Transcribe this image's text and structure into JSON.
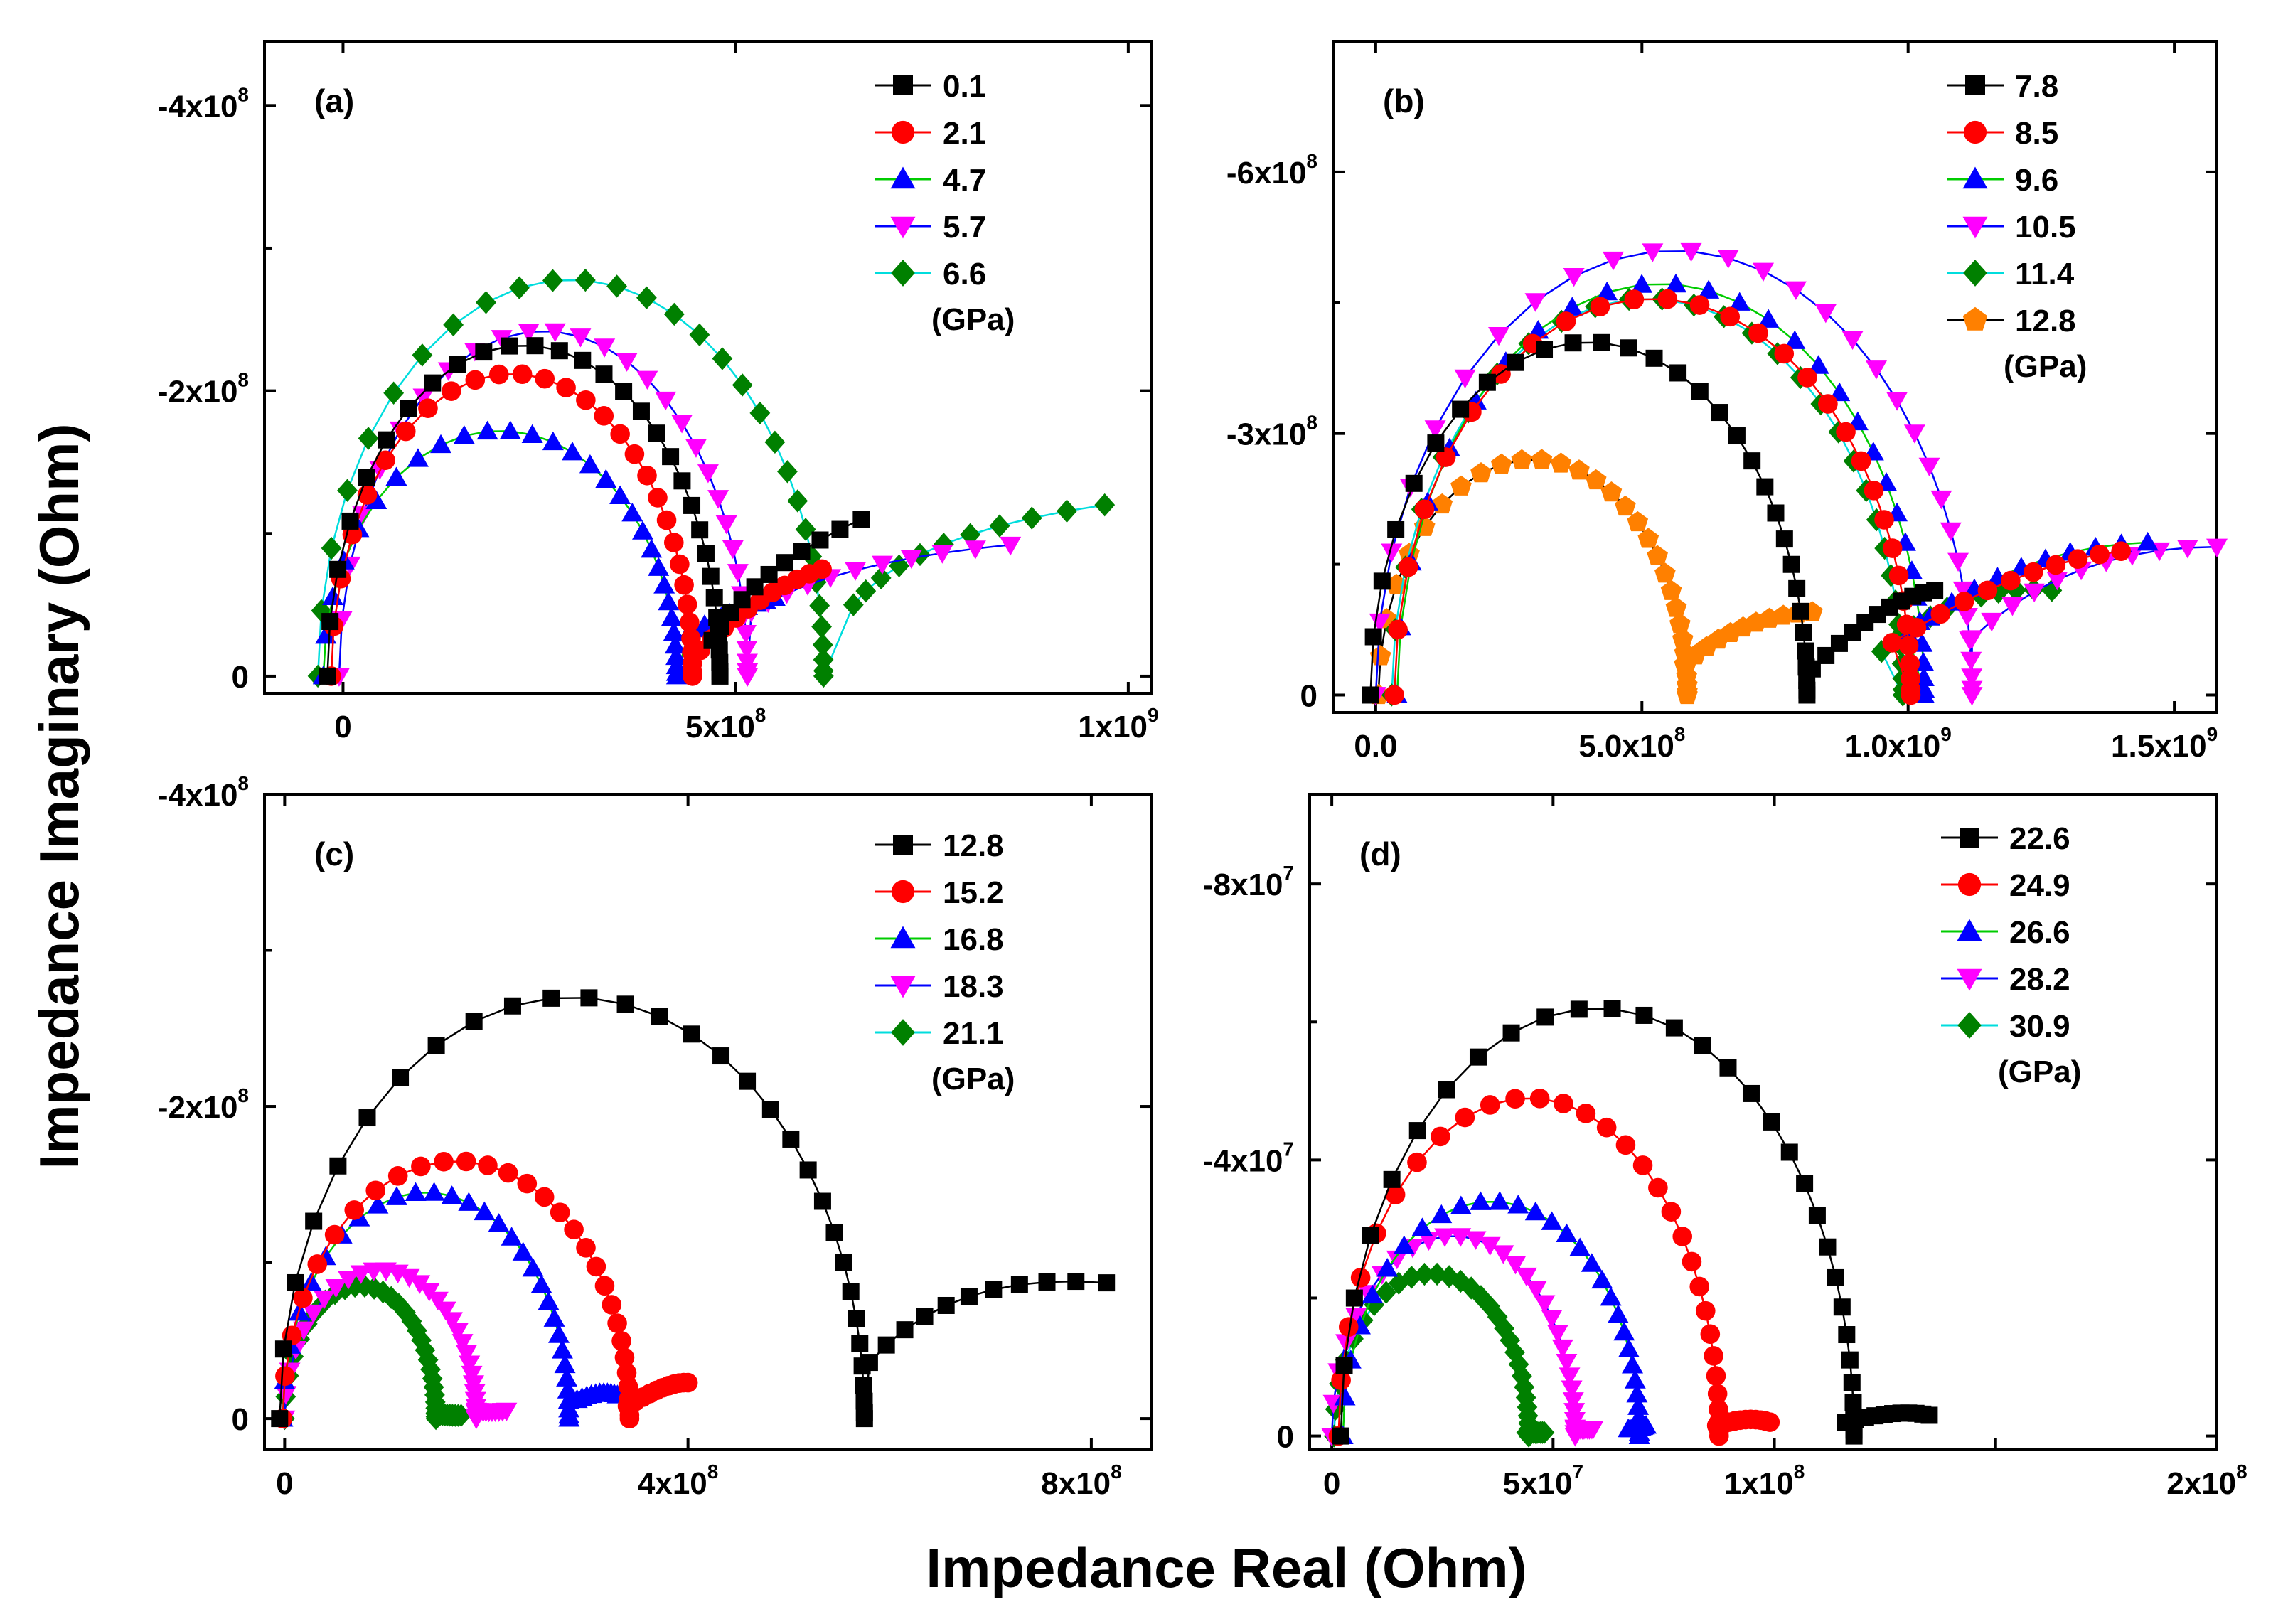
{
  "figure": {
    "xlabel": "Impedance Real (Ohm)",
    "ylabel": "Impedance Imaginary (Ohm)"
  },
  "chart_data": [
    {
      "type": "scatter",
      "panel": "(a)",
      "legend_unit": "(GPa)",
      "xlim": [
        -100000000.0,
        1030000000.0
      ],
      "ylim": [
        -12000000.0,
        445000000.0
      ],
      "y_inverted_sign": true,
      "xticks": [
        {
          "v": 0,
          "m": "0",
          "e": ""
        },
        {
          "v": 500000000.0,
          "m": "5x10",
          "e": "8"
        },
        {
          "v": 1000000000.0,
          "m": "1x10",
          "e": "9"
        }
      ],
      "yticks": [
        {
          "v": 0,
          "m": "0",
          "e": ""
        },
        {
          "v": 200000000.0,
          "m": "-2x10",
          "e": "8"
        },
        {
          "v": 400000000.0,
          "m": "-4x10",
          "e": "8"
        }
      ],
      "series": [
        {
          "name": "0.1",
          "color": "#000000",
          "line": "#000000",
          "marker": "square",
          "arc": {
            "a": 250000000.0,
            "b": 232000000.0,
            "c": 230000000.0
          },
          "tail": {
            "x0": 470000000.0,
            "y0": 25000000.0,
            "x1": 520000000.0,
            "y1": 75000000.0,
            "x2": 660000000.0,
            "y2": 110000000.0
          }
        },
        {
          "name": "2.1",
          "color": "#ff0000",
          "line": "#ff0000",
          "marker": "circle",
          "arc": {
            "a": 230000000.0,
            "b": 212000000.0,
            "c": 215000000.0
          },
          "tail": {
            "x0": 455000000.0,
            "y0": 18000000.0,
            "x1": 530000000.0,
            "y1": 60000000.0,
            "x2": 610000000.0,
            "y2": 75000000.0
          }
        },
        {
          "name": "4.7",
          "color": "#0000ff",
          "line": "#00cc00",
          "marker": "triangle-up",
          "arc": {
            "a": 225000000.0,
            "b": 172000000.0,
            "c": 200000000.0
          },
          "tail": {
            "x0": 440000000.0,
            "y0": 30000000.0,
            "x1": 490000000.0,
            "y1": 45000000.0,
            "x2": 550000000.0,
            "y2": 55000000.0
          }
        },
        {
          "name": "5.7",
          "color": "#ff00ff",
          "line": "#0000ff",
          "marker": "triangle-down",
          "arc": {
            "a": 260000000.0,
            "b": 242000000.0,
            "c": 255000000.0
          },
          "tail": {
            "x0": 520000000.0,
            "y0": 45000000.0,
            "x1": 620000000.0,
            "y1": 80000000.0,
            "x2": 850000000.0,
            "y2": 92000000.0
          }
        },
        {
          "name": "6.6",
          "color": "#008000",
          "line": "#00dddd",
          "marker": "diamond",
          "arc": {
            "a": 322000000.0,
            "b": 278000000.0,
            "c": 290000000.0
          },
          "tail": {
            "x0": 650000000.0,
            "y0": 50000000.0,
            "x1": 720000000.0,
            "y1": 100000000.0,
            "x2": 970000000.0,
            "y2": 120000000.0
          }
        }
      ]
    },
    {
      "type": "scatter",
      "panel": "(b)",
      "legend_unit": "(GPa)",
      "xlim": [
        -80000000.0,
        1580000000.0
      ],
      "ylim": [
        -20000000.0,
        750000000.0
      ],
      "y_inverted_sign": true,
      "xticks": [
        {
          "v": 0,
          "m": "0.0",
          "e": ""
        },
        {
          "v": 500000000.0,
          "m": "5.0x10",
          "e": "8"
        },
        {
          "v": 1000000000.0,
          "m": "1.0x10",
          "e": "9"
        },
        {
          "v": 1500000000.0,
          "m": "1.5x10",
          "e": "9"
        }
      ],
      "yticks": [
        {
          "v": 0,
          "m": "0",
          "e": ""
        },
        {
          "v": 300000000.0,
          "m": "-3x10",
          "e": "8"
        },
        {
          "v": 600000000.0,
          "m": "-6x10",
          "e": "8"
        }
      ],
      "series": [
        {
          "name": "7.8",
          "color": "#000000",
          "line": "#000000",
          "marker": "square",
          "arc": {
            "a": 410000000.0,
            "b": 405000000.0,
            "c": 400000000.0
          },
          "tail": {
            "x0": 820000000.0,
            "y0": 30000000.0,
            "x1": 950000000.0,
            "y1": 110000000.0,
            "x2": 1050000000.0,
            "y2": 120000000.0
          }
        },
        {
          "name": "8.5",
          "color": "#ff0000",
          "line": "#ff0000",
          "marker": "circle",
          "arc": {
            "a": 485000000.0,
            "b": 455000000.0,
            "c": 520000000.0
          },
          "tail": {
            "x0": 970000000.0,
            "y0": 60000000.0,
            "x1": 1200000000.0,
            "y1": 150000000.0,
            "x2": 1400000000.0,
            "y2": 165000000.0
          }
        },
        {
          "name": "9.6",
          "color": "#0000ff",
          "line": "#00cc00",
          "marker": "triangle-up",
          "arc": {
            "a": 495000000.0,
            "b": 472000000.0,
            "c": 535000000.0
          },
          "tail": {
            "x0": 1000000000.0,
            "y0": 70000000.0,
            "x1": 1200000000.0,
            "y1": 170000000.0,
            "x2": 1450000000.0,
            "y2": 175000000.0
          }
        },
        {
          "name": "10.5",
          "color": "#ff00ff",
          "line": "#0000ff",
          "marker": "triangle-down",
          "arc": {
            "a": 560000000.0,
            "b": 510000000.0,
            "c": 560000000.0
          },
          "tail": {
            "x0": 1120000000.0,
            "y0": 65000000.0,
            "x1": 1300000000.0,
            "y1": 170000000.0,
            "x2": 1580000000.0,
            "y2": 170000000.0
          }
        },
        {
          "name": "11.4",
          "color": "#008000",
          "line": "#00dddd",
          "marker": "diamond",
          "arc": {
            "a": 480000000.0,
            "b": 455000000.0,
            "c": 510000000.0
          },
          "tail": {
            "x0": 950000000.0,
            "y0": 50000000.0,
            "x1": 1100000000.0,
            "y1": 130000000.0,
            "x2": 1270000000.0,
            "y2": 120000000.0
          }
        },
        {
          "name": "12.8",
          "color": "#ff8000",
          "line": "#000000",
          "marker": "pentagon",
          "arc": {
            "a": 290000000.0,
            "b": 270000000.0,
            "c": 295000000.0
          },
          "tail": {
            "x0": 580000000.0,
            "y0": 35000000.0,
            "x1": 680000000.0,
            "y1": 90000000.0,
            "x2": 820000000.0,
            "y2": 95000000.0
          }
        }
      ]
    },
    {
      "type": "scatter",
      "panel": "(c)",
      "legend_unit": "(GPa)",
      "xlim": [
        -20000000.0,
        860000000.0
      ],
      "ylim": [
        -20000000.0,
        400000000.0
      ],
      "y_inverted_sign": true,
      "xticks": [
        {
          "v": 0,
          "m": "0",
          "e": ""
        },
        {
          "v": 400000000.0,
          "m": "4x10",
          "e": "8"
        },
        {
          "v": 800000000.0,
          "m": "8x10",
          "e": "8"
        }
      ],
      "yticks": [
        {
          "v": 0,
          "m": "0",
          "e": ""
        },
        {
          "v": 200000000.0,
          "m": "-2x10",
          "e": "8"
        },
        {
          "v": 400000000.0,
          "m": "-4x10",
          "e": "8"
        }
      ],
      "series": [
        {
          "name": "12.8",
          "color": "#000000",
          "line": "#000000",
          "marker": "square",
          "arc": {
            "a": 290000000.0,
            "b": 270000000.0,
            "c": 285000000.0
          },
          "tail": {
            "x0": 580000000.0,
            "y0": 36000000.0,
            "x1": 660000000.0,
            "y1": 95000000.0,
            "x2": 815000000.0,
            "y2": 87000000.0
          }
        },
        {
          "name": "15.2",
          "color": "#ff0000",
          "line": "#ff0000",
          "marker": "circle",
          "arc": {
            "a": 172000000.0,
            "b": 165000000.0,
            "c": 170000000.0
          },
          "tail": {
            "x0": 340000000.0,
            "y0": 8000000.0,
            "x1": 380000000.0,
            "y1": 24000000.0,
            "x2": 400000000.0,
            "y2": 23000000.0
          }
        },
        {
          "name": "16.8",
          "color": "#0000ff",
          "line": "#00cc00",
          "marker": "triangle-up",
          "arc": {
            "a": 142000000.0,
            "b": 145000000.0,
            "c": 140000000.0
          },
          "tail": {
            "x0": 290000000.0,
            "y0": 12000000.0,
            "x1": 315000000.0,
            "y1": 19000000.0,
            "x2": 330000000.0,
            "y2": 15000000.0
          }
        },
        {
          "name": "18.3",
          "color": "#ff00ff",
          "line": "#0000ff",
          "marker": "triangle-down",
          "arc": {
            "a": 95000000.0,
            "b": 95000000.0,
            "c": 95000000.0
          },
          "tail": {
            "x0": 190000000.0,
            "y0": 5000000.0,
            "x1": 200000000.0,
            "y1": 4000000.0,
            "x2": 220000000.0,
            "y2": 5000000.0
          }
        },
        {
          "name": "21.1",
          "color": "#008000",
          "line": "#00dddd",
          "marker": "diamond",
          "arc": {
            "a": 75000000.0,
            "b": 85000000.0,
            "c": 75000000.0
          },
          "tail": {
            "x0": 150000000.0,
            "y0": 3000000.0,
            "x1": 160000000.0,
            "y1": 2000000.0,
            "x2": 175000000.0,
            "y2": 2000000.0
          }
        }
      ]
    },
    {
      "type": "scatter",
      "panel": "(d)",
      "legend_unit": "(GPa)",
      "xlim": [
        -5000000.0,
        200000000.0
      ],
      "ylim": [
        -2000000.0,
        93000000.0
      ],
      "y_inverted_sign": true,
      "xticks": [
        {
          "v": 0,
          "m": "0",
          "e": ""
        },
        {
          "v": 50000000.0,
          "m": "5x10",
          "e": "7"
        },
        {
          "v": 100000000.0,
          "m": "1x10",
          "e": "8"
        },
        {
          "v": 200000000.0,
          "m": "2x10",
          "e": "8"
        }
      ],
      "xminor": [
        150000000.0
      ],
      "yticks": [
        {
          "v": 0,
          "m": "0",
          "e": ""
        },
        {
          "v": 40000000.0,
          "m": "-4x10",
          "e": "7"
        },
        {
          "v": 80000000.0,
          "m": "-8x10",
          "e": "7"
        }
      ],
      "series": [
        {
          "name": "22.6",
          "color": "#000000",
          "line": "#000000",
          "marker": "square",
          "arc": {
            "a": 58000000.0,
            "b": 62000000.0,
            "c": 60000000.0
          },
          "tail": {
            "x0": 116000000.0,
            "y0": 2000000.0,
            "x1": 128000000.0,
            "y1": 4000000.0,
            "x2": 135000000.0,
            "y2": 3000000.0
          }
        },
        {
          "name": "24.9",
          "color": "#ff0000",
          "line": "#ff0000",
          "marker": "circle",
          "arc": {
            "a": 43000000.0,
            "b": 49000000.0,
            "c": 44500000.0
          },
          "tail": {
            "x0": 87000000.0,
            "y0": 1500000.0,
            "x1": 94000000.0,
            "y1": 3000000.0,
            "x2": 99000000.0,
            "y2": 2000000.0
          }
        },
        {
          "name": "26.6",
          "color": "#0000ff",
          "line": "#00cc00",
          "marker": "triangle-up",
          "arc": {
            "a": 33500000.0,
            "b": 34000000.0,
            "c": 36000000.0
          },
          "tail": {
            "x0": 67000000.0,
            "y0": 1000000.0,
            "x1": 69000000.0,
            "y1": 1000000.0,
            "x2": 71000000.0,
            "y2": 1500000.0
          }
        },
        {
          "name": "28.2",
          "color": "#ff00ff",
          "line": "#0000ff",
          "marker": "triangle-down",
          "arc": {
            "a": 27500000.0,
            "b": 29000000.0,
            "c": 27500000.0
          },
          "tail": {
            "x0": 55000000.0,
            "y0": 1000000.0,
            "x1": 57000000.0,
            "y1": 1000000.0,
            "x2": 59000000.0,
            "y2": 1000000.0
          }
        },
        {
          "name": "30.9",
          "color": "#008000",
          "line": "#00dddd",
          "marker": "diamond",
          "arc": {
            "a": 22000000.0,
            "b": 23500000.0,
            "c": 22500000.0
          },
          "tail": {
            "x0": 44000000.0,
            "y0": 500000.0,
            "x1": 46000000.0,
            "y1": 500000.0,
            "x2": 48000000.0,
            "y2": 500000.0
          }
        }
      ]
    }
  ]
}
